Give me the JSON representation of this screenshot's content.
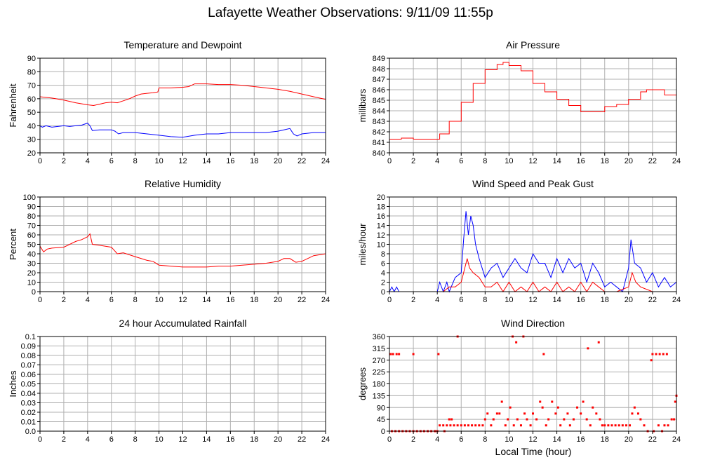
{
  "page": {
    "title": "Lafayette Weather Observations: 9/11/09 11:55p",
    "x_axis_label": "Local Time (hour)"
  },
  "colors": {
    "red": "#ff0000",
    "blue": "#0000ff",
    "grid": "#b0b0b0",
    "frame": "#000000"
  },
  "chart_data": [
    {
      "id": "temperature",
      "type": "line",
      "title": "Temperature and Dewpoint",
      "xlabel": "",
      "ylabel": "Fahrenheit",
      "xlim": [
        0,
        24
      ],
      "ylim": [
        20,
        90
      ],
      "xticks": [
        0,
        2,
        4,
        6,
        8,
        10,
        12,
        14,
        16,
        18,
        20,
        22,
        24
      ],
      "yticks": [
        20,
        30,
        40,
        50,
        60,
        70,
        80,
        90
      ],
      "grid": true,
      "series": [
        {
          "color": "#ff0000",
          "style": "line",
          "x": [
            0,
            1,
            2,
            3,
            4,
            4.5,
            5,
            5.5,
            6,
            6.5,
            7,
            7.5,
            8,
            8.5,
            9,
            9.5,
            9.9,
            10,
            11,
            12,
            12.5,
            13,
            14,
            15,
            16,
            17,
            18,
            19,
            20,
            21,
            22,
            23,
            24
          ],
          "y": [
            61.5,
            60.5,
            59,
            57,
            55.5,
            55,
            56,
            57,
            57.5,
            57,
            58.5,
            60,
            62,
            63.5,
            64,
            64.5,
            65,
            68,
            68,
            68.5,
            69,
            71,
            71,
            70.5,
            70.5,
            70,
            69,
            68,
            67,
            65.5,
            63.5,
            61.5,
            59.5
          ]
        },
        {
          "color": "#0000ff",
          "style": "line",
          "x": [
            0,
            0.2,
            0.5,
            1,
            1.5,
            2,
            2.5,
            3,
            3.5,
            4,
            4.2,
            4.4,
            5,
            6,
            6.3,
            6.6,
            7,
            8,
            9,
            10,
            11,
            12,
            13,
            14,
            15,
            16,
            17,
            18,
            19,
            20,
            20.5,
            21,
            21.3,
            21.6,
            22,
            23,
            24
          ],
          "y": [
            40,
            39,
            40,
            39,
            39.5,
            40,
            39.5,
            40,
            40.5,
            42,
            40,
            36.5,
            37,
            37,
            36,
            34,
            35,
            35,
            34,
            33,
            32,
            31.5,
            33,
            34,
            34,
            35,
            35,
            35,
            35,
            36,
            37,
            38,
            34,
            32.5,
            34,
            35,
            35
          ]
        }
      ]
    },
    {
      "id": "pressure",
      "type": "line",
      "title": "Air Pressure",
      "xlabel": "",
      "ylabel": "millibars",
      "xlim": [
        0,
        24
      ],
      "ylim": [
        840,
        849
      ],
      "xticks": [
        0,
        2,
        4,
        6,
        8,
        10,
        12,
        14,
        16,
        18,
        20,
        22,
        24
      ],
      "yticks": [
        840,
        841,
        842,
        843,
        844,
        845,
        846,
        847,
        848,
        849
      ],
      "grid": true,
      "series": [
        {
          "color": "#ff0000",
          "style": "step",
          "x": [
            0,
            1,
            2,
            3,
            4,
            4.2,
            5,
            6,
            7,
            8,
            9,
            9.5,
            10,
            11,
            12,
            13,
            14,
            15,
            16,
            17,
            18,
            19,
            20,
            21,
            21.5,
            22,
            23,
            24
          ],
          "y": [
            841.3,
            841.4,
            841.3,
            841.3,
            841.3,
            841.8,
            843,
            844.8,
            846.6,
            847.9,
            848.4,
            848.6,
            848.3,
            847.8,
            846.6,
            845.8,
            845.1,
            844.5,
            843.9,
            843.9,
            844.4,
            844.6,
            845.1,
            845.8,
            846,
            846,
            845.5,
            845.2
          ]
        }
      ]
    },
    {
      "id": "humidity",
      "type": "line",
      "title": "Relative Humidity",
      "xlabel": "",
      "ylabel": "Percent",
      "xlim": [
        0,
        24
      ],
      "ylim": [
        0,
        100
      ],
      "xticks": [
        0,
        2,
        4,
        6,
        8,
        10,
        12,
        14,
        16,
        18,
        20,
        22,
        24
      ],
      "yticks": [
        0,
        10,
        20,
        30,
        40,
        50,
        60,
        70,
        80,
        90,
        100
      ],
      "grid": true,
      "series": [
        {
          "color": "#ff0000",
          "style": "line",
          "x": [
            0,
            0.3,
            0.6,
            1,
            2,
            2.5,
            3,
            3.5,
            4,
            4.2,
            4.4,
            5,
            6,
            6.5,
            7,
            8,
            9,
            9.5,
            10,
            11,
            12,
            13,
            14,
            15,
            16,
            17,
            18,
            19,
            20,
            20.5,
            21,
            21.5,
            22,
            23,
            24
          ],
          "y": [
            48,
            42,
            45,
            46,
            47,
            50,
            53,
            55,
            58,
            61,
            50,
            49,
            47,
            40,
            41,
            37,
            33,
            32,
            28,
            27,
            26,
            26,
            26,
            27,
            27,
            28,
            29,
            30,
            32,
            35,
            35,
            31,
            32,
            38,
            40
          ]
        }
      ]
    },
    {
      "id": "wind",
      "type": "line",
      "title": "Wind Speed and Peak Gust",
      "xlabel": "",
      "ylabel": "miles/hour",
      "xlim": [
        0,
        24
      ],
      "ylim": [
        0,
        20
      ],
      "xticks": [
        0,
        2,
        4,
        6,
        8,
        10,
        12,
        14,
        16,
        18,
        20,
        22,
        24
      ],
      "yticks": [
        0,
        2,
        4,
        6,
        8,
        10,
        12,
        14,
        16,
        18,
        20
      ],
      "grid": true,
      "series": [
        {
          "color": "#0000ff",
          "style": "line",
          "x": [
            0,
            0.2,
            0.4,
            0.6,
            0.8,
            1,
            2,
            3,
            4,
            4.2,
            4.5,
            4.8,
            5,
            5.5,
            6,
            6.2,
            6.4,
            6.6,
            6.8,
            7,
            7.2,
            7.5,
            8,
            8.5,
            9,
            9.5,
            10,
            10.5,
            11,
            11.5,
            12,
            12.5,
            13,
            13.5,
            14,
            14.5,
            15,
            15.5,
            16,
            16.5,
            17,
            17.5,
            18,
            18.5,
            19,
            19.5,
            20,
            20.2,
            20.5,
            21,
            21.5,
            22,
            22.5,
            23,
            23.5,
            24
          ],
          "y": [
            0,
            1,
            0,
            1,
            0,
            0,
            0,
            0,
            0,
            2,
            0,
            2,
            0,
            3,
            4,
            11,
            17,
            12,
            16,
            14,
            10,
            7,
            3,
            5,
            6,
            3,
            5,
            7,
            5,
            4,
            8,
            6,
            6,
            3,
            7,
            4,
            7,
            5,
            6,
            2,
            6,
            4,
            1,
            2,
            1,
            0,
            5,
            11,
            6,
            5,
            2,
            4,
            1,
            3,
            1,
            2
          ]
        },
        {
          "color": "#ff0000",
          "style": "line",
          "x": [
            0,
            4,
            4.5,
            5,
            5.5,
            6,
            6.3,
            6.5,
            6.7,
            7,
            7.5,
            8,
            8.5,
            9,
            9.5,
            10,
            10.5,
            11,
            11.5,
            12,
            12.5,
            13,
            13.5,
            14,
            14.5,
            15,
            15.5,
            16,
            16.5,
            17,
            17.5,
            18,
            19,
            20,
            20.3,
            20.6,
            21,
            22,
            23,
            24
          ],
          "y": [
            0,
            0,
            0,
            1,
            1,
            2,
            5,
            7,
            5,
            4,
            3,
            1,
            1,
            2,
            0,
            2,
            0,
            1,
            0,
            2,
            0,
            1,
            0,
            2,
            0,
            1,
            0,
            2,
            0,
            2,
            1,
            0,
            0,
            1,
            4,
            2,
            1,
            0,
            0,
            0
          ]
        }
      ]
    },
    {
      "id": "rainfall",
      "type": "line",
      "title": "24 hour Accumulated Rainfall",
      "xlabel": "",
      "ylabel": "Inches",
      "xlim": [
        0,
        24
      ],
      "ylim": [
        0,
        0.1
      ],
      "xticks": [
        0,
        2,
        4,
        6,
        8,
        10,
        12,
        14,
        16,
        18,
        20,
        22,
        24
      ],
      "yticks": [
        0,
        0.01,
        0.02,
        0.03,
        0.04,
        0.05,
        0.06,
        0.07,
        0.08,
        0.09,
        0.1
      ],
      "ytick_labels": [
        "0.0",
        "0.01",
        "0.02",
        "0.03",
        "0.04",
        "0.05",
        "0.06",
        "0.07",
        "0.08",
        "0.09",
        "0.1"
      ],
      "grid": true,
      "series": [
        {
          "color": "#ff0000",
          "style": "line",
          "x": [
            0,
            24
          ],
          "y": [
            0,
            0
          ]
        }
      ]
    },
    {
      "id": "direction",
      "type": "scatter",
      "title": "Wind Direction",
      "xlabel": "Local Time (hour)",
      "ylabel": "degrees",
      "xlim": [
        0,
        24
      ],
      "ylim": [
        0,
        360
      ],
      "xticks": [
        0,
        2,
        4,
        6,
        8,
        10,
        12,
        14,
        16,
        18,
        20,
        22,
        24
      ],
      "yticks": [
        0,
        45,
        90,
        135,
        180,
        225,
        270,
        315,
        360
      ],
      "grid": true,
      "series": [
        {
          "color": "#ff0000",
          "style": "points",
          "points": [
            [
              0.1,
              293
            ],
            [
              0.3,
              293
            ],
            [
              0.6,
              293
            ],
            [
              0.8,
              293
            ],
            [
              2.0,
              293
            ],
            [
              4.1,
              293
            ],
            [
              5.7,
              360
            ],
            [
              10.3,
              360
            ],
            [
              10.6,
              338
            ],
            [
              11.2,
              360
            ],
            [
              12.9,
              293
            ],
            [
              16.6,
              315
            ],
            [
              17.5,
              338
            ],
            [
              21.9,
              270
            ],
            [
              22.0,
              293
            ],
            [
              22.3,
              293
            ],
            [
              22.6,
              293
            ],
            [
              22.9,
              293
            ],
            [
              23.2,
              293
            ],
            [
              0.2,
              0
            ],
            [
              0.5,
              0
            ],
            [
              0.8,
              0
            ],
            [
              1.1,
              0
            ],
            [
              1.4,
              0
            ],
            [
              1.7,
              0
            ],
            [
              2.0,
              0
            ],
            [
              2.3,
              0
            ],
            [
              2.6,
              0
            ],
            [
              2.9,
              0
            ],
            [
              3.2,
              0
            ],
            [
              3.5,
              0
            ],
            [
              3.8,
              0
            ],
            [
              4.0,
              0
            ],
            [
              4.2,
              22
            ],
            [
              4.5,
              22
            ],
            [
              4.8,
              22
            ],
            [
              5.1,
              22
            ],
            [
              5.4,
              22
            ],
            [
              5.7,
              22
            ],
            [
              6.0,
              22
            ],
            [
              6.3,
              22
            ],
            [
              6.6,
              22
            ],
            [
              6.9,
              22
            ],
            [
              7.2,
              22
            ],
            [
              7.5,
              22
            ],
            [
              7.8,
              22
            ],
            [
              4.6,
              0
            ],
            [
              5.0,
              45
            ],
            [
              5.2,
              45
            ],
            [
              8.0,
              45
            ],
            [
              8.2,
              67
            ],
            [
              8.5,
              22
            ],
            [
              8.7,
              45
            ],
            [
              9.0,
              67
            ],
            [
              9.2,
              67
            ],
            [
              9.4,
              112
            ],
            [
              9.7,
              22
            ],
            [
              9.9,
              45
            ],
            [
              10.1,
              90
            ],
            [
              10.4,
              22
            ],
            [
              10.7,
              45
            ],
            [
              11.0,
              22
            ],
            [
              11.3,
              67
            ],
            [
              11.5,
              45
            ],
            [
              11.8,
              22
            ],
            [
              12.0,
              67
            ],
            [
              12.3,
              45
            ],
            [
              12.6,
              112
            ],
            [
              12.8,
              90
            ],
            [
              13.1,
              22
            ],
            [
              13.3,
              45
            ],
            [
              13.6,
              112
            ],
            [
              13.9,
              67
            ],
            [
              14.1,
              90
            ],
            [
              14.3,
              22
            ],
            [
              14.6,
              45
            ],
            [
              14.9,
              67
            ],
            [
              15.1,
              22
            ],
            [
              15.4,
              45
            ],
            [
              15.7,
              90
            ],
            [
              16.0,
              67
            ],
            [
              16.2,
              112
            ],
            [
              16.5,
              45
            ],
            [
              16.8,
              22
            ],
            [
              17.0,
              90
            ],
            [
              17.3,
              67
            ],
            [
              17.6,
              45
            ],
            [
              17.8,
              22
            ],
            [
              18.0,
              22
            ],
            [
              18.3,
              22
            ],
            [
              18.6,
              22
            ],
            [
              18.9,
              22
            ],
            [
              19.2,
              22
            ],
            [
              19.5,
              22
            ],
            [
              19.8,
              22
            ],
            [
              20.1,
              22
            ],
            [
              20.3,
              67
            ],
            [
              20.5,
              90
            ],
            [
              20.8,
              67
            ],
            [
              21.0,
              45
            ],
            [
              21.3,
              22
            ],
            [
              21.6,
              0
            ],
            [
              22.1,
              0
            ],
            [
              22.5,
              22
            ],
            [
              22.8,
              0
            ],
            [
              23.0,
              22
            ],
            [
              23.3,
              22
            ],
            [
              23.6,
              45
            ],
            [
              23.8,
              45
            ],
            [
              23.9,
              112
            ],
            [
              24.0,
              135
            ]
          ]
        }
      ]
    }
  ]
}
